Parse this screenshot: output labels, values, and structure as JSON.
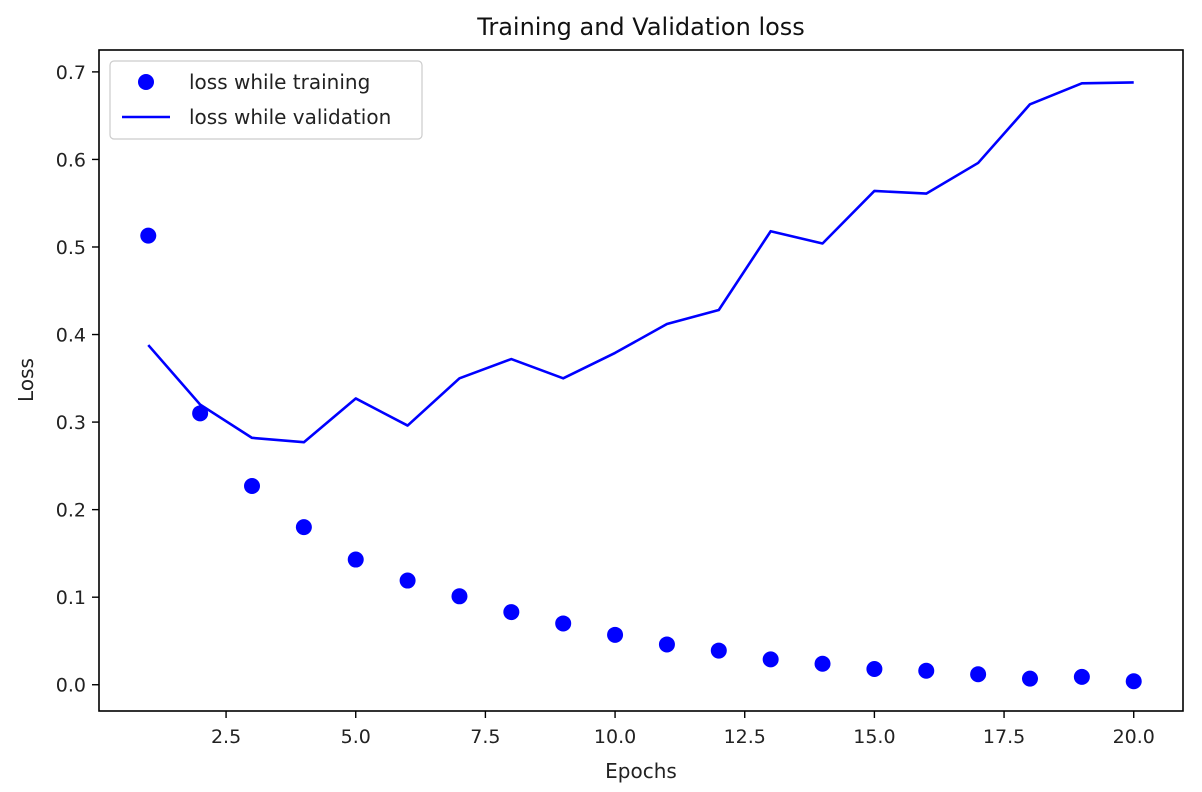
{
  "chart_data": {
    "type": "line",
    "title": "Training and Validation loss",
    "xlabel": "Epochs",
    "ylabel": "Loss",
    "xlim": [
      0.05,
      20.95
    ],
    "ylim": [
      -0.03,
      0.725
    ],
    "xticks": [
      "2.5",
      "5.0",
      "7.5",
      "10.0",
      "12.5",
      "15.0",
      "17.5",
      "20.0"
    ],
    "yticks": [
      "0.0",
      "0.1",
      "0.2",
      "0.3",
      "0.4",
      "0.5",
      "0.6",
      "0.7"
    ],
    "grid": false,
    "legend_position": "upper-left",
    "x": [
      1,
      2,
      3,
      4,
      5,
      6,
      7,
      8,
      9,
      10,
      11,
      12,
      13,
      14,
      15,
      16,
      17,
      18,
      19,
      20
    ],
    "series": [
      {
        "name": "loss while training",
        "style": "points",
        "color": "#0000ff",
        "values": [
          0.513,
          0.31,
          0.227,
          0.18,
          0.143,
          0.119,
          0.101,
          0.083,
          0.07,
          0.057,
          0.046,
          0.039,
          0.029,
          0.024,
          0.018,
          0.016,
          0.012,
          0.007,
          0.009,
          0.004
        ]
      },
      {
        "name": "loss while validation",
        "style": "line",
        "color": "#0000ff",
        "values": [
          0.388,
          0.32,
          0.282,
          0.277,
          0.327,
          0.296,
          0.35,
          0.372,
          0.35,
          0.379,
          0.412,
          0.428,
          0.518,
          0.504,
          0.564,
          0.561,
          0.596,
          0.663,
          0.687,
          0.688
        ]
      }
    ]
  }
}
